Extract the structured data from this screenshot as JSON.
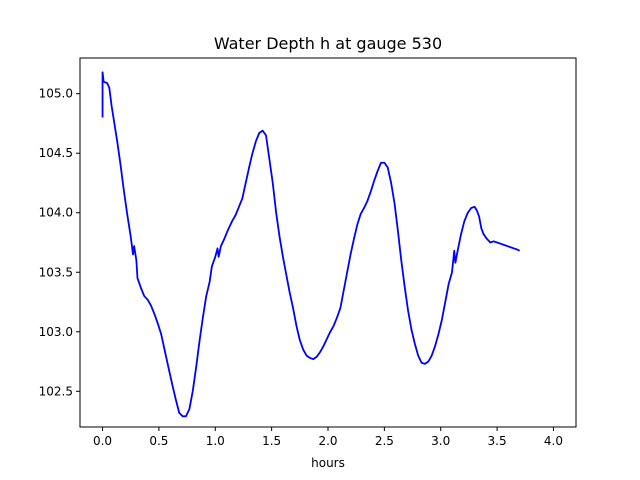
{
  "chart_data": {
    "type": "line",
    "title": "Water Depth h at gauge 530",
    "xlabel": "hours",
    "ylabel": "",
    "xlim": [
      -0.2,
      4.2
    ],
    "ylim": [
      102.2,
      105.3
    ],
    "xticks": [
      0.0,
      0.5,
      1.0,
      1.5,
      2.0,
      2.5,
      3.0,
      3.5,
      4.0
    ],
    "yticks": [
      102.5,
      103.0,
      103.5,
      104.0,
      104.5,
      105.0
    ],
    "xtick_labels": [
      "0.0",
      "0.5",
      "1.0",
      "1.5",
      "2.0",
      "2.5",
      "3.0",
      "3.5",
      "4.0"
    ],
    "ytick_labels": [
      "102.5",
      "103.0",
      "103.5",
      "104.0",
      "104.5",
      "105.0"
    ],
    "grid": false,
    "series": [
      {
        "color": "#0000ff",
        "points": [
          [
            0.0,
            104.8
          ],
          [
            0.0,
            105.18
          ],
          [
            0.01,
            105.1
          ],
          [
            0.04,
            105.09
          ],
          [
            0.06,
            105.05
          ],
          [
            0.08,
            104.9
          ],
          [
            0.1,
            104.78
          ],
          [
            0.13,
            104.6
          ],
          [
            0.16,
            104.4
          ],
          [
            0.19,
            104.18
          ],
          [
            0.22,
            103.98
          ],
          [
            0.25,
            103.8
          ],
          [
            0.27,
            103.65
          ],
          [
            0.28,
            103.72
          ],
          [
            0.3,
            103.6
          ],
          [
            0.31,
            103.45
          ],
          [
            0.34,
            103.37
          ],
          [
            0.37,
            103.3
          ],
          [
            0.4,
            103.27
          ],
          [
            0.43,
            103.22
          ],
          [
            0.46,
            103.15
          ],
          [
            0.49,
            103.07
          ],
          [
            0.52,
            102.98
          ],
          [
            0.55,
            102.85
          ],
          [
            0.58,
            102.72
          ],
          [
            0.62,
            102.55
          ],
          [
            0.65,
            102.43
          ],
          [
            0.68,
            102.32
          ],
          [
            0.71,
            102.29
          ],
          [
            0.74,
            102.29
          ],
          [
            0.77,
            102.35
          ],
          [
            0.8,
            102.5
          ],
          [
            0.83,
            102.7
          ],
          [
            0.86,
            102.92
          ],
          [
            0.89,
            103.12
          ],
          [
            0.92,
            103.3
          ],
          [
            0.95,
            103.42
          ],
          [
            0.97,
            103.55
          ],
          [
            1.0,
            103.63
          ],
          [
            1.02,
            103.7
          ],
          [
            1.03,
            103.63
          ],
          [
            1.05,
            103.72
          ],
          [
            1.08,
            103.78
          ],
          [
            1.11,
            103.85
          ],
          [
            1.15,
            103.93
          ],
          [
            1.18,
            103.98
          ],
          [
            1.21,
            104.05
          ],
          [
            1.24,
            104.12
          ],
          [
            1.27,
            104.25
          ],
          [
            1.3,
            104.38
          ],
          [
            1.33,
            104.5
          ],
          [
            1.36,
            104.6
          ],
          [
            1.39,
            104.67
          ],
          [
            1.42,
            104.69
          ],
          [
            1.45,
            104.65
          ],
          [
            1.48,
            104.45
          ],
          [
            1.51,
            104.25
          ],
          [
            1.54,
            104.0
          ],
          [
            1.57,
            103.8
          ],
          [
            1.6,
            103.63
          ],
          [
            1.63,
            103.48
          ],
          [
            1.66,
            103.33
          ],
          [
            1.69,
            103.2
          ],
          [
            1.72,
            103.05
          ],
          [
            1.75,
            102.93
          ],
          [
            1.78,
            102.85
          ],
          [
            1.81,
            102.8
          ],
          [
            1.84,
            102.78
          ],
          [
            1.87,
            102.77
          ],
          [
            1.9,
            102.79
          ],
          [
            1.93,
            102.83
          ],
          [
            1.96,
            102.88
          ],
          [
            1.99,
            102.94
          ],
          [
            2.02,
            103.0
          ],
          [
            2.05,
            103.05
          ],
          [
            2.08,
            103.12
          ],
          [
            2.11,
            103.2
          ],
          [
            2.14,
            103.35
          ],
          [
            2.17,
            103.5
          ],
          [
            2.2,
            103.65
          ],
          [
            2.23,
            103.78
          ],
          [
            2.26,
            103.9
          ],
          [
            2.29,
            103.99
          ],
          [
            2.32,
            104.04
          ],
          [
            2.35,
            104.1
          ],
          [
            2.38,
            104.18
          ],
          [
            2.41,
            104.27
          ],
          [
            2.44,
            104.35
          ],
          [
            2.47,
            104.42
          ],
          [
            2.5,
            104.42
          ],
          [
            2.53,
            104.38
          ],
          [
            2.56,
            104.25
          ],
          [
            2.59,
            104.08
          ],
          [
            2.62,
            103.85
          ],
          [
            2.65,
            103.6
          ],
          [
            2.68,
            103.38
          ],
          [
            2.71,
            103.18
          ],
          [
            2.74,
            103.02
          ],
          [
            2.77,
            102.9
          ],
          [
            2.8,
            102.8
          ],
          [
            2.83,
            102.74
          ],
          [
            2.86,
            102.73
          ],
          [
            2.89,
            102.75
          ],
          [
            2.92,
            102.8
          ],
          [
            2.95,
            102.88
          ],
          [
            2.98,
            102.98
          ],
          [
            3.01,
            103.1
          ],
          [
            3.04,
            103.25
          ],
          [
            3.07,
            103.4
          ],
          [
            3.1,
            103.5
          ],
          [
            3.12,
            103.68
          ],
          [
            3.13,
            103.58
          ],
          [
            3.15,
            103.68
          ],
          [
            3.18,
            103.82
          ],
          [
            3.21,
            103.93
          ],
          [
            3.24,
            104.0
          ],
          [
            3.27,
            104.04
          ],
          [
            3.3,
            104.05
          ],
          [
            3.32,
            104.02
          ],
          [
            3.34,
            103.97
          ],
          [
            3.36,
            103.87
          ],
          [
            3.38,
            103.82
          ],
          [
            3.41,
            103.78
          ],
          [
            3.44,
            103.75
          ],
          [
            3.47,
            103.76
          ],
          [
            3.5,
            103.75
          ],
          [
            3.53,
            103.74
          ],
          [
            3.56,
            103.73
          ],
          [
            3.59,
            103.72
          ],
          [
            3.62,
            103.71
          ],
          [
            3.65,
            103.7
          ],
          [
            3.68,
            103.69
          ],
          [
            3.7,
            103.68
          ]
        ]
      }
    ]
  }
}
